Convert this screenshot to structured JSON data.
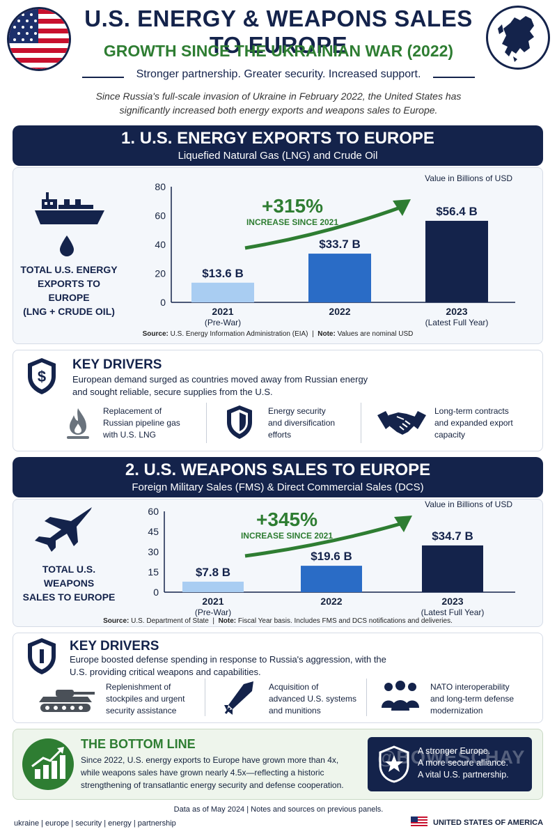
{
  "header": {
    "title": "U.S. ENERGY & WEAPONS SALES TO EUROPE",
    "subtitle": "GROWTH SINCE THE UKRAINIAN WAR (2022)",
    "tagline": "Stronger partnership. Greater security. Increased support.",
    "intro_line1": "Since Russia's full-scale invasion of Ukraine in February 2022, the United States has",
    "intro_line2": "significantly increased both energy exports and weapons sales to Europe."
  },
  "colors": {
    "navy": "#14234b",
    "green": "#2e7d32",
    "bar_2021": "#a9cdf2",
    "bar_2022": "#2a6cc6",
    "bar_2023": "#14234b"
  },
  "energy": {
    "heading": "1. U.S. ENERGY EXPORTS TO EUROPE",
    "subheading": "Liquefied Natural Gas (LNG) and Crude Oil",
    "left_label": [
      "TOTAL U.S. ENERGY",
      "EXPORTS TO EUROPE",
      "(LNG + CRUDE OIL)"
    ],
    "growth": "+315%",
    "growth_note": "INCREASE SINCE 2021",
    "source_label": "Source:",
    "source_text": "U.S. Energy Information Administration (EIA)",
    "note_label": "Note:",
    "note_text": "Values are nominal USD",
    "key_drivers": {
      "title": "KEY DRIVERS",
      "line1": "European demand surged as countries moved away from Russian energy",
      "line2": "and sought reliable, secure supplies from the U.S.",
      "items": [
        {
          "icon": "gas-flame-icon",
          "lines": [
            "Replacement of",
            "Russian pipeline gas",
            "with U.S. LNG"
          ]
        },
        {
          "icon": "shield-icon",
          "lines": [
            "Energy security",
            "and diversification",
            "efforts"
          ]
        },
        {
          "icon": "handshake-icon",
          "lines": [
            "Long-term contracts",
            "and expanded export",
            "capacity"
          ]
        }
      ]
    }
  },
  "weapons": {
    "heading": "2. U.S. WEAPONS SALES TO EUROPE",
    "subheading": "Foreign Military Sales (FMS) & Direct Commercial Sales (DCS)",
    "left_label": [
      "TOTAL U.S. WEAPONS",
      "SALES TO EUROPE"
    ],
    "growth": "+345%",
    "growth_note": "INCREASE SINCE 2021",
    "source_label": "Source:",
    "source_text": "U.S. Department of State",
    "note_label": "Note:",
    "note_text": "Fiscal Year basis. Includes FMS and DCS notifications and deliveries.",
    "key_drivers": {
      "title": "KEY DRIVERS",
      "line1": "Europe boosted defense spending in response to Russia's aggression, with the",
      "line2": "U.S. providing critical weapons and capabilities.",
      "items": [
        {
          "icon": "tank-icon",
          "lines": [
            "Replenishment of",
            "stockpiles and urgent",
            "security assistance"
          ]
        },
        {
          "icon": "missile-icon",
          "lines": [
            "Acquisition of",
            "advanced U.S. systems",
            "and munitions"
          ]
        },
        {
          "icon": "people-group-icon",
          "lines": [
            "NATO interoperability",
            "and long-term defense",
            "modernization"
          ]
        }
      ]
    }
  },
  "chart_data": [
    {
      "type": "bar",
      "unit_note": "Value in Billions of USD",
      "categories": [
        "2021",
        "2022",
        "2023"
      ],
      "category_sublabels": [
        "(Pre-War)",
        "",
        "(Latest Full Year)"
      ],
      "values": [
        13.6,
        33.7,
        56.4
      ],
      "value_labels": [
        "$13.6 B",
        "$33.7 B",
        "$56.4 B"
      ],
      "ylim": [
        0,
        80
      ],
      "yticks": [
        0,
        20,
        40,
        60,
        80
      ],
      "grid": false
    },
    {
      "type": "bar",
      "unit_note": "Value in Billions of USD",
      "categories": [
        "2021",
        "2022",
        "2023"
      ],
      "category_sublabels": [
        "(Pre-War)",
        "",
        "(Latest Full Year)"
      ],
      "values": [
        7.8,
        19.6,
        34.7
      ],
      "value_labels": [
        "$7.8 B",
        "$19.6 B",
        "$34.7 B"
      ],
      "ylim": [
        0,
        60
      ],
      "yticks": [
        0,
        15,
        30,
        45,
        60
      ],
      "grid": false
    }
  ],
  "bottom_line": {
    "title": "THE BOTTOM LINE",
    "line1": "Since 2022, U.S. energy exports to Europe have grown more than 4x,",
    "line2": "while weapons sales have grown nearly 4.5x—reflecting a historic",
    "line3": "strengthening of transatlantic energy security and defense cooperation.",
    "box_line1": "A stronger Europe.",
    "box_line2": "A more secure alliance.",
    "box_line3": "A vital U.S. partnership.",
    "watermark": "@BOWESCHAY"
  },
  "footer": {
    "note": "Data as of May 2024  |  Notes and sources on previous panels.",
    "tags": "ukraine  |  europe  |  security  |  energy  |  partnership",
    "country": "UNITED STATES OF AMERICA"
  }
}
